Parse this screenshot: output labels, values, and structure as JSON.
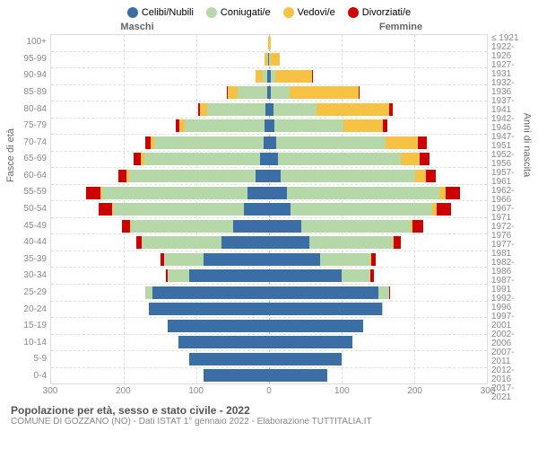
{
  "chart": {
    "type": "population-pyramid",
    "legend": [
      {
        "label": "Celibi/Nubili",
        "color": "#3b6ea5"
      },
      {
        "label": "Coniugati/e",
        "color": "#b6d7a8"
      },
      {
        "label": "Vedovi/e",
        "color": "#f6c244"
      },
      {
        "label": "Divorziati/e",
        "color": "#cc0000"
      }
    ],
    "header_left": "Maschi",
    "header_right": "Femmine",
    "y_title_left": "Fasce di età",
    "y_title_right": "Anni di nascita",
    "x_max": 300,
    "x_ticks": [
      300,
      200,
      100,
      0,
      100,
      200,
      300
    ],
    "grid_color": "#e0e0e0",
    "background_color": "#ffffff",
    "rows": [
      {
        "age": "100+",
        "birth": "≤ 1921",
        "m": [
          0,
          0,
          1,
          0
        ],
        "f": [
          0,
          0,
          3,
          0
        ]
      },
      {
        "age": "95-99",
        "birth": "1922-1926",
        "m": [
          1,
          1,
          4,
          0
        ],
        "f": [
          0,
          1,
          14,
          0
        ]
      },
      {
        "age": "90-94",
        "birth": "1927-1931",
        "m": [
          2,
          7,
          10,
          0
        ],
        "f": [
          3,
          6,
          50,
          2
        ]
      },
      {
        "age": "85-89",
        "birth": "1932-1936",
        "m": [
          3,
          40,
          14,
          1
        ],
        "f": [
          3,
          25,
          95,
          2
        ]
      },
      {
        "age": "80-84",
        "birth": "1937-1941",
        "m": [
          5,
          80,
          10,
          3
        ],
        "f": [
          6,
          60,
          100,
          4
        ]
      },
      {
        "age": "75-79",
        "birth": "1942-1946",
        "m": [
          6,
          110,
          8,
          4
        ],
        "f": [
          7,
          95,
          55,
          6
        ]
      },
      {
        "age": "70-74",
        "birth": "1947-1951",
        "m": [
          8,
          150,
          5,
          8
        ],
        "f": [
          10,
          150,
          45,
          12
        ]
      },
      {
        "age": "65-69",
        "birth": "1952-1956",
        "m": [
          12,
          160,
          4,
          10
        ],
        "f": [
          12,
          170,
          25,
          14
        ]
      },
      {
        "age": "60-64",
        "birth": "1957-1961",
        "m": [
          18,
          175,
          3,
          12
        ],
        "f": [
          16,
          185,
          15,
          14
        ]
      },
      {
        "age": "55-59",
        "birth": "1962-1966",
        "m": [
          30,
          200,
          2,
          20
        ],
        "f": [
          25,
          210,
          8,
          20
        ]
      },
      {
        "age": "50-54",
        "birth": "1967-1971",
        "m": [
          35,
          180,
          1,
          18
        ],
        "f": [
          30,
          195,
          6,
          20
        ]
      },
      {
        "age": "45-49",
        "birth": "1972-1976",
        "m": [
          50,
          140,
          1,
          12
        ],
        "f": [
          45,
          150,
          3,
          14
        ]
      },
      {
        "age": "40-44",
        "birth": "1977-1981",
        "m": [
          65,
          110,
          0,
          8
        ],
        "f": [
          55,
          115,
          2,
          10
        ]
      },
      {
        "age": "35-39",
        "birth": "1982-1986",
        "m": [
          90,
          55,
          0,
          4
        ],
        "f": [
          70,
          70,
          1,
          6
        ]
      },
      {
        "age": "30-34",
        "birth": "1987-1991",
        "m": [
          110,
          30,
          0,
          2
        ],
        "f": [
          100,
          40,
          0,
          4
        ]
      },
      {
        "age": "25-29",
        "birth": "1992-1996",
        "m": [
          160,
          10,
          0,
          1
        ],
        "f": [
          150,
          15,
          0,
          2
        ]
      },
      {
        "age": "20-24",
        "birth": "1997-2001",
        "m": [
          165,
          1,
          0,
          0
        ],
        "f": [
          155,
          2,
          0,
          0
        ]
      },
      {
        "age": "15-19",
        "birth": "2002-2006",
        "m": [
          140,
          0,
          0,
          0
        ],
        "f": [
          130,
          0,
          0,
          0
        ]
      },
      {
        "age": "10-14",
        "birth": "2007-2011",
        "m": [
          125,
          0,
          0,
          0
        ],
        "f": [
          115,
          0,
          0,
          0
        ]
      },
      {
        "age": "5-9",
        "birth": "2012-2016",
        "m": [
          110,
          0,
          0,
          0
        ],
        "f": [
          100,
          0,
          0,
          0
        ]
      },
      {
        "age": "0-4",
        "birth": "2017-2021",
        "m": [
          90,
          0,
          0,
          0
        ],
        "f": [
          80,
          0,
          0,
          0
        ]
      }
    ],
    "title": "Popolazione per età, sesso e stato civile - 2022",
    "subtitle": "COMUNE DI GOZZANO (NO) - Dati ISTAT 1° gennaio 2022 - Elaborazione TUTTITALIA.IT"
  }
}
